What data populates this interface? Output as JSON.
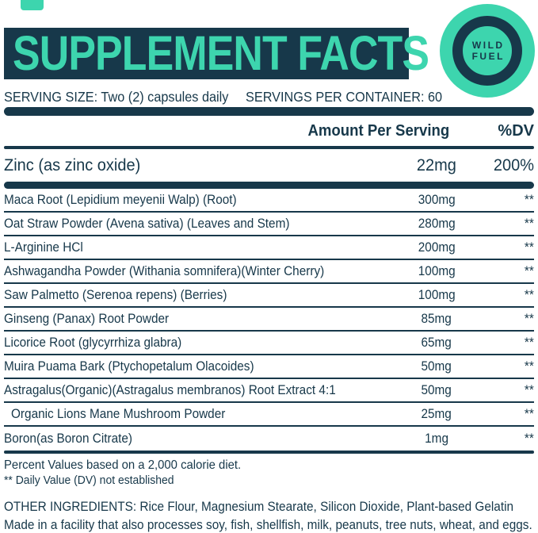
{
  "colors": {
    "navy": "#17384a",
    "teal": "#3dd5ae"
  },
  "title": "SUPPLEMENT FACTS",
  "logo": {
    "line1": "WILD",
    "line2": "FUEL"
  },
  "serving": {
    "size": "SERVING SIZE: Two (2) capsules daily",
    "per_container": "SERVINGS PER CONTAINER: 60"
  },
  "table": {
    "amount_header": "Amount Per Serving",
    "dv_header": "%DV",
    "primary_row": {
      "name": "Zinc (as zinc oxide)",
      "amount": "22mg",
      "dv": "200%"
    },
    "rows": [
      {
        "name": "Maca Root (Lepidium meyenii Walp) (Root)",
        "amount": "300mg",
        "dv": "**"
      },
      {
        "name": "Oat Straw Powder (Avena sativa) (Leaves and Stem)",
        "amount": "280mg",
        "dv": "**"
      },
      {
        "name": "L-Arginine HCl",
        "amount": "200mg",
        "dv": "**"
      },
      {
        "name": "Ashwagandha Powder (Withania somnifera)(Winter Cherry)",
        "amount": "100mg",
        "dv": "**"
      },
      {
        "name": "Saw Palmetto (Serenoa repens) (Berries)",
        "amount": "100mg",
        "dv": "**"
      },
      {
        "name": "Ginseng (Panax) Root Powder",
        "amount": "85mg",
        "dv": "**"
      },
      {
        "name": "Licorice Root (glycyrrhiza glabra)",
        "amount": "65mg",
        "dv": "**"
      },
      {
        "name": "Muira Puama Bark (Ptychopetalum Olacoides)",
        "amount": "50mg",
        "dv": "**"
      },
      {
        "name": "Astragalus(Organic)(Astragalus membranos) Root Extract 4:1",
        "amount": "50mg",
        "dv": "**"
      },
      {
        "name": "Organic Lions Mane Mushroom Powder",
        "amount": "25mg",
        "dv": "**"
      },
      {
        "name": "Boron(as Boron Citrate)",
        "amount": "1mg",
        "dv": "**"
      }
    ]
  },
  "footnotes": {
    "percent_values": "Percent Values based on a 2,000 calorie diet.",
    "daily_value": "** Daily Value (DV) not established",
    "other_ingredients": "OTHER INGREDIENTS: Rice Flour, Magnesium Stearate, Silicon Dioxide, Plant-based Gelatin",
    "allergen": "Made in a facility that also processes soy, fish, shellfish, milk, peanuts, tree nuts, wheat, and eggs."
  }
}
